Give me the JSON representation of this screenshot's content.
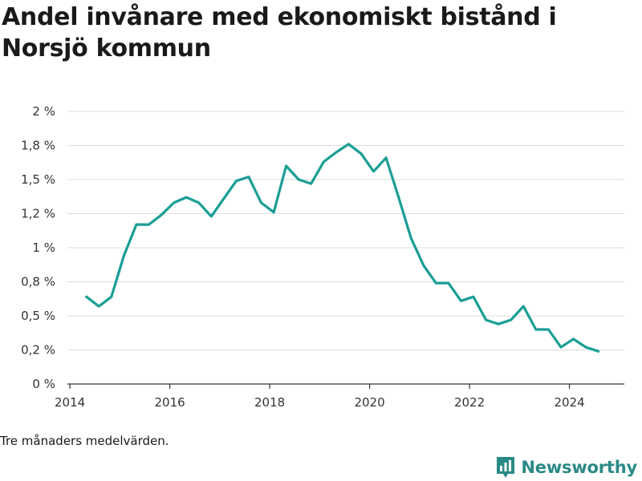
{
  "title": "Andel invånare med ekonomiskt bistånd i Norsjö kommun",
  "footnote": "Tre månaders medelvärden.",
  "brand": "Newsworthy",
  "line_color": "#1a9e95",
  "chart_data": {
    "type": "line",
    "title": "Andel invånare med ekonomiskt bistånd i Norsjö kommun",
    "xlabel": "",
    "ylabel": "",
    "xlim": [
      2013.95,
      2025.1
    ],
    "ylim": [
      0,
      2.0
    ],
    "x_ticks": [
      {
        "value": 2014,
        "label": "2014"
      },
      {
        "value": 2016,
        "label": "2016"
      },
      {
        "value": 2018,
        "label": "2018"
      },
      {
        "value": 2020,
        "label": "2020"
      },
      {
        "value": 2022,
        "label": "2022"
      },
      {
        "value": 2024,
        "label": "2024"
      }
    ],
    "y_ticks": [
      {
        "value": 0,
        "label": "0 %"
      },
      {
        "value": 0.25,
        "label": "0,2 %"
      },
      {
        "value": 0.5,
        "label": "0,5 %"
      },
      {
        "value": 0.75,
        "label": "0,8 %"
      },
      {
        "value": 1.0,
        "label": "1 %"
      },
      {
        "value": 1.25,
        "label": "1,2 %"
      },
      {
        "value": 1.5,
        "label": "1,5 %"
      },
      {
        "value": 1.75,
        "label": "1,8 %"
      },
      {
        "value": 2.0,
        "label": "2 %"
      }
    ],
    "grid": true,
    "series": [
      {
        "x": [
          2014.33,
          2014.58,
          2014.83,
          2015.08,
          2015.33,
          2015.58,
          2015.83,
          2016.08,
          2016.33,
          2016.58,
          2016.83,
          2017.08,
          2017.33,
          2017.58,
          2017.83,
          2018.08,
          2018.33,
          2018.58,
          2018.83,
          2019.08,
          2019.33,
          2019.58,
          2019.83,
          2020.08,
          2020.33,
          2020.58,
          2020.83,
          2021.08,
          2021.33,
          2021.58,
          2021.83,
          2022.08,
          2022.33,
          2022.58,
          2022.83,
          2023.08,
          2023.33,
          2023.58,
          2023.83,
          2024.08,
          2024.33,
          2024.58
        ],
        "y": [
          0.64,
          0.57,
          0.64,
          0.94,
          1.17,
          1.17,
          1.24,
          1.33,
          1.37,
          1.33,
          1.23,
          1.36,
          1.49,
          1.52,
          1.33,
          1.26,
          1.6,
          1.5,
          1.47,
          1.63,
          1.7,
          1.76,
          1.69,
          1.56,
          1.66,
          1.37,
          1.07,
          0.87,
          0.74,
          0.74,
          0.61,
          0.64,
          0.47,
          0.44,
          0.47,
          0.57,
          0.4,
          0.4,
          0.27,
          0.33,
          0.27,
          0.24
        ]
      }
    ]
  }
}
